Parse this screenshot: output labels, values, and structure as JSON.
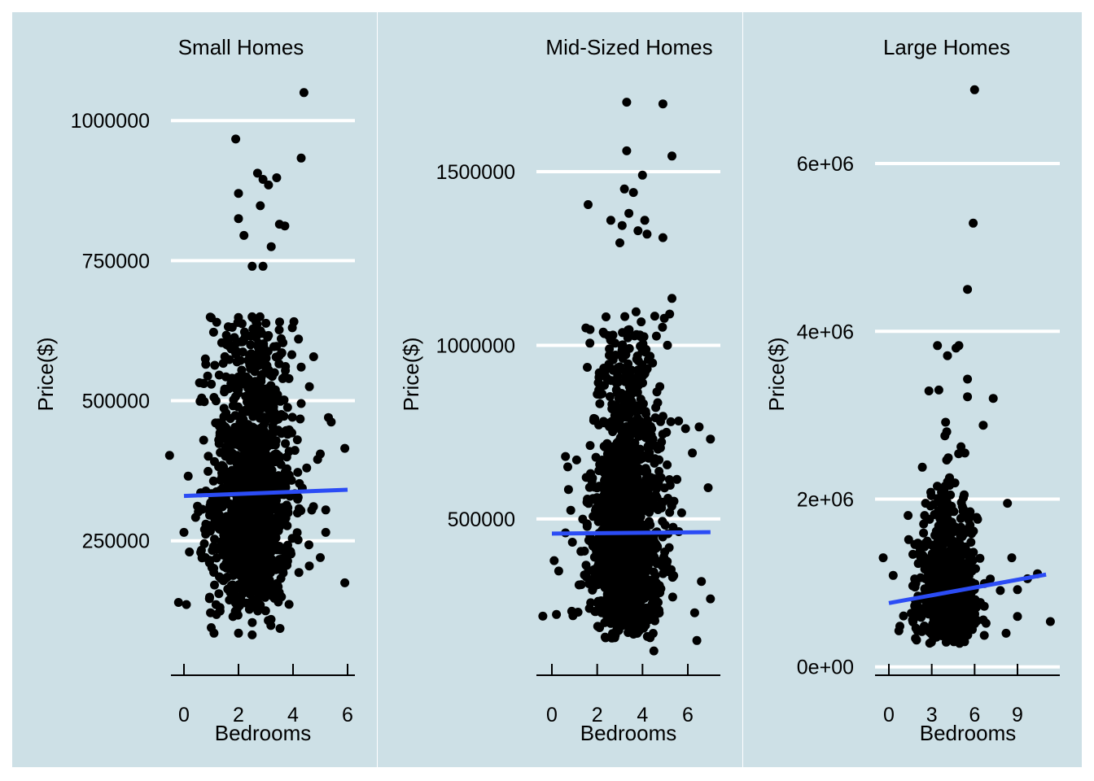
{
  "theme": {
    "panel_background": "#cde0e6",
    "gridline_color": "#ffffff",
    "point_color": "#000000",
    "trend_color": "#2b4cf5",
    "text_color": "#000000"
  },
  "chart_data": [
    {
      "type": "scatter",
      "title": "Small Homes",
      "xlabel": "Bedrooms",
      "ylabel": "Price($)",
      "xlim": [
        -0.5,
        6.3
      ],
      "ylim": [
        10000,
        1070000
      ],
      "x_ticks": [
        0,
        2,
        4,
        6
      ],
      "x_tick_labels": [
        "0",
        "2",
        "4",
        "6"
      ],
      "y_ticks": [
        250000,
        500000,
        750000,
        1000000
      ],
      "y_tick_labels": [
        "250000",
        "500000",
        "750000",
        "1000000"
      ],
      "grid": "horizontal",
      "trend_line": {
        "x": [
          0,
          6
        ],
        "y": [
          330000,
          341000
        ]
      },
      "cloud": {
        "count": 1300,
        "x_mean": 2.5,
        "x_sd": 0.75,
        "y_median": 330000,
        "y_min": 80000,
        "y_max": 650000
      },
      "points": [
        {
          "x": 4.4,
          "y": 1050000
        },
        {
          "x": 1.9,
          "y": 967000
        },
        {
          "x": 4.3,
          "y": 933000
        },
        {
          "x": 2.7,
          "y": 906000
        },
        {
          "x": 2.9,
          "y": 895000
        },
        {
          "x": 3.4,
          "y": 898000
        },
        {
          "x": 2.0,
          "y": 870000
        },
        {
          "x": 2.8,
          "y": 848000
        },
        {
          "x": 3.1,
          "y": 885000
        },
        {
          "x": 2.0,
          "y": 825000
        },
        {
          "x": 3.5,
          "y": 815000
        },
        {
          "x": 3.7,
          "y": 812000
        },
        {
          "x": 2.2,
          "y": 795000
        },
        {
          "x": 3.2,
          "y": 775000
        },
        {
          "x": 2.5,
          "y": 740000
        },
        {
          "x": 2.9,
          "y": 740000
        },
        {
          "x": 1.0,
          "y": 648000
        },
        {
          "x": 1.2,
          "y": 640000
        },
        {
          "x": 0.8,
          "y": 565000
        },
        {
          "x": 4.2,
          "y": 610000
        },
        {
          "x": 4.3,
          "y": 560000
        },
        {
          "x": 4.6,
          "y": 525000
        },
        {
          "x": 4.3,
          "y": 495000
        },
        {
          "x": 5.3,
          "y": 470000
        },
        {
          "x": 5.4,
          "y": 462000
        },
        {
          "x": 5.0,
          "y": 405000
        },
        {
          "x": 5.9,
          "y": 415000
        },
        {
          "x": 4.5,
          "y": 380000
        },
        {
          "x": 5.2,
          "y": 305000
        },
        {
          "x": 5.2,
          "y": 265000
        },
        {
          "x": 5.0,
          "y": 220000
        },
        {
          "x": 5.9,
          "y": 175000
        },
        {
          "x": 0.0,
          "y": 265000
        },
        {
          "x": 0.2,
          "y": 230000
        },
        {
          "x": -0.2,
          "y": 140000
        },
        {
          "x": 1.0,
          "y": 95000
        },
        {
          "x": 1.1,
          "y": 85000
        },
        {
          "x": 2.0,
          "y": 85000
        },
        {
          "x": 2.5,
          "y": 82000
        }
      ]
    },
    {
      "type": "scatter",
      "title": "Mid-Sized Homes",
      "xlabel": "Bedrooms",
      "ylabel": "Price($)",
      "xlim": [
        -0.5,
        7.4
      ],
      "ylim": [
        50000,
        1760000
      ],
      "x_ticks": [
        0,
        2,
        4,
        6
      ],
      "x_tick_labels": [
        "0",
        "2",
        "4",
        "6"
      ],
      "y_ticks": [
        500000,
        1000000,
        1500000
      ],
      "y_tick_labels": [
        "500000",
        "1000000",
        "1500000"
      ],
      "grid": "horizontal",
      "trend_line": {
        "x": [
          0,
          7
        ],
        "y": [
          458000,
          462000
        ]
      },
      "cloud": {
        "count": 1500,
        "x_mean": 3.3,
        "x_sd": 0.8,
        "y_median": 480000,
        "y_min": 150000,
        "y_max": 1100000
      },
      "points": [
        {
          "x": 3.3,
          "y": 1700000
        },
        {
          "x": 4.9,
          "y": 1695000
        },
        {
          "x": 3.3,
          "y": 1560000
        },
        {
          "x": 5.3,
          "y": 1545000
        },
        {
          "x": 4.0,
          "y": 1490000
        },
        {
          "x": 3.2,
          "y": 1450000
        },
        {
          "x": 3.6,
          "y": 1440000
        },
        {
          "x": 1.6,
          "y": 1405000
        },
        {
          "x": 3.4,
          "y": 1380000
        },
        {
          "x": 4.1,
          "y": 1360000
        },
        {
          "x": 2.6,
          "y": 1360000
        },
        {
          "x": 3.1,
          "y": 1345000
        },
        {
          "x": 3.8,
          "y": 1330000
        },
        {
          "x": 4.2,
          "y": 1320000
        },
        {
          "x": 4.9,
          "y": 1310000
        },
        {
          "x": 3.0,
          "y": 1295000
        },
        {
          "x": 5.3,
          "y": 1135000
        },
        {
          "x": 5.2,
          "y": 1090000
        },
        {
          "x": 1.5,
          "y": 1050000
        },
        {
          "x": 5.1,
          "y": 1000000
        },
        {
          "x": 5.9,
          "y": 760000
        },
        {
          "x": 6.5,
          "y": 765000
        },
        {
          "x": 7.0,
          "y": 730000
        },
        {
          "x": 6.2,
          "y": 690000
        },
        {
          "x": 0.6,
          "y": 680000
        },
        {
          "x": 0.7,
          "y": 650000
        },
        {
          "x": 6.9,
          "y": 590000
        },
        {
          "x": 0.6,
          "y": 460000
        },
        {
          "x": 0.1,
          "y": 380000
        },
        {
          "x": 0.3,
          "y": 350000
        },
        {
          "x": -0.4,
          "y": 220000
        },
        {
          "x": 0.2,
          "y": 225000
        },
        {
          "x": 1.2,
          "y": 310000
        },
        {
          "x": 7.0,
          "y": 270000
        },
        {
          "x": 6.6,
          "y": 320000
        },
        {
          "x": 6.3,
          "y": 230000
        },
        {
          "x": 6.4,
          "y": 150000
        },
        {
          "x": 4.5,
          "y": 120000
        }
      ]
    },
    {
      "type": "scatter",
      "title": "Large Homes",
      "xlabel": "Bedrooms",
      "ylabel": "Price($)",
      "xlim": [
        -1.0,
        11.7
      ],
      "ylim": [
        -100000,
        6980000
      ],
      "x_ticks": [
        0,
        3,
        6,
        9
      ],
      "x_tick_labels": [
        "0",
        "3",
        "6",
        "9"
      ],
      "y_ticks": [
        0,
        2000000,
        4000000,
        6000000
      ],
      "y_tick_labels": [
        "0e+00",
        "2e+06",
        "4e+06",
        "6e+06"
      ],
      "grid": "horizontal",
      "trend_line": {
        "x": [
          0,
          11
        ],
        "y": [
          760000,
          1100000
        ]
      },
      "cloud": {
        "count": 900,
        "x_mean": 4.2,
        "x_sd": 0.95,
        "y_median": 900000,
        "y_min": 280000,
        "y_max": 3000000
      },
      "points": [
        {
          "x": 6.0,
          "y": 6880000
        },
        {
          "x": 5.9,
          "y": 5290000
        },
        {
          "x": 5.5,
          "y": 4500000
        },
        {
          "x": 3.4,
          "y": 3830000
        },
        {
          "x": 4.9,
          "y": 3830000
        },
        {
          "x": 4.7,
          "y": 3800000
        },
        {
          "x": 4.1,
          "y": 3710000
        },
        {
          "x": 5.5,
          "y": 3430000
        },
        {
          "x": 2.8,
          "y": 3290000
        },
        {
          "x": 3.5,
          "y": 3300000
        },
        {
          "x": 5.5,
          "y": 3220000
        },
        {
          "x": 7.3,
          "y": 3200000
        },
        {
          "x": 6.6,
          "y": 2880000
        },
        {
          "x": 8.3,
          "y": 1950000
        },
        {
          "x": -0.4,
          "y": 1300000
        },
        {
          "x": 0.3,
          "y": 1090000
        },
        {
          "x": 0.7,
          "y": 430000
        },
        {
          "x": 8.6,
          "y": 1300000
        },
        {
          "x": 9.7,
          "y": 1050000
        },
        {
          "x": 10.4,
          "y": 1110000
        },
        {
          "x": 9.0,
          "y": 920000
        },
        {
          "x": 9.0,
          "y": 600000
        },
        {
          "x": 11.3,
          "y": 540000
        },
        {
          "x": 8.2,
          "y": 400000
        },
        {
          "x": 7.8,
          "y": 910000
        },
        {
          "x": 6.8,
          "y": 520000
        },
        {
          "x": 2.0,
          "y": 430000
        },
        {
          "x": 5.3,
          "y": 300000
        }
      ]
    }
  ]
}
